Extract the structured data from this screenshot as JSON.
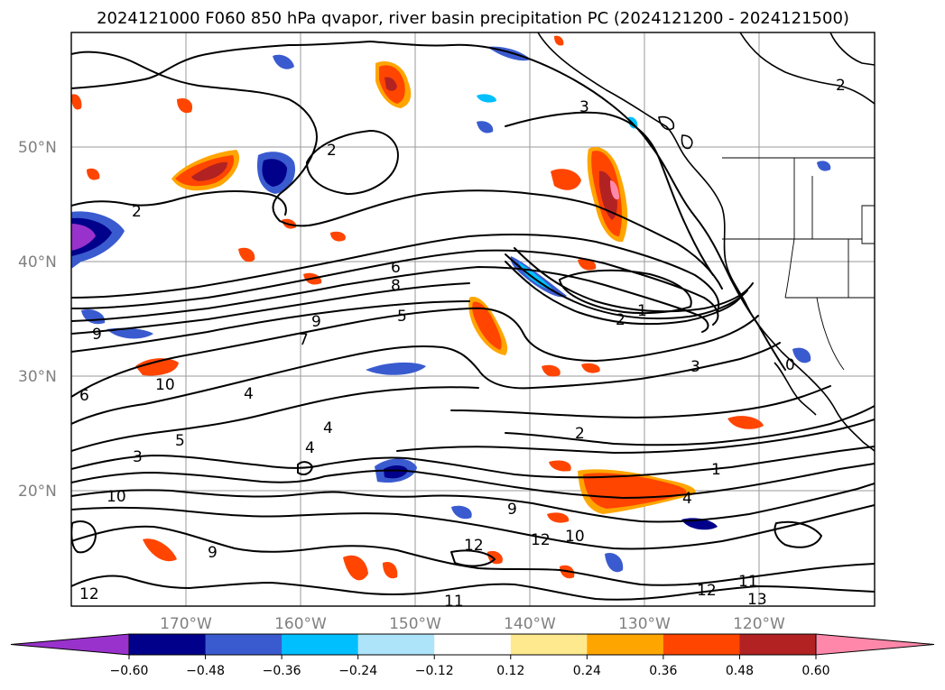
{
  "title": "2024121000 F060 850 hPa qvapor, river basin precipitation PC (2024121200 - 2024121500)",
  "map": {
    "lat_labels": [
      "50°N",
      "40°N",
      "30°N",
      "20°N"
    ],
    "lon_labels": [
      "170°W",
      "160°W",
      "150°W",
      "140°W",
      "130°W",
      "120°W"
    ],
    "contour_labels": [
      "2",
      "2",
      "3",
      "6",
      "8",
      "5",
      "9",
      "7",
      "10",
      "4",
      "6",
      "5",
      "4",
      "4",
      "3",
      "2",
      "1",
      "2",
      "1",
      "3",
      "0",
      "10",
      "9",
      "10",
      "12",
      "12",
      "11",
      "11",
      "12",
      "13",
      "9",
      "12",
      "4",
      "9",
      "2"
    ]
  },
  "colorbar": {
    "tick_labels": [
      "−0.60",
      "−0.48",
      "−0.36",
      "−0.24",
      "−0.12",
      "0.12",
      "0.24",
      "0.36",
      "0.48",
      "0.60"
    ],
    "colors": [
      "#9932CC",
      "#00008B",
      "#3A5BCF",
      "#00BFFF",
      "#AEE4FA",
      "#FFFFFF",
      "#FFE98E",
      "#FFA500",
      "#FF4500",
      "#B22222",
      "#FF88AA"
    ],
    "extend": "both"
  },
  "colors": {
    "neg_strong": "#00008B",
    "neg_mid": "#3A5BCF",
    "neg_light": "#00BFFF",
    "pos_light": "#FFA500",
    "pos_mid": "#FF4500",
    "pos_strong": "#B22222",
    "pos_max": "#FF88AA",
    "extreme_neg": "#9932CC"
  }
}
